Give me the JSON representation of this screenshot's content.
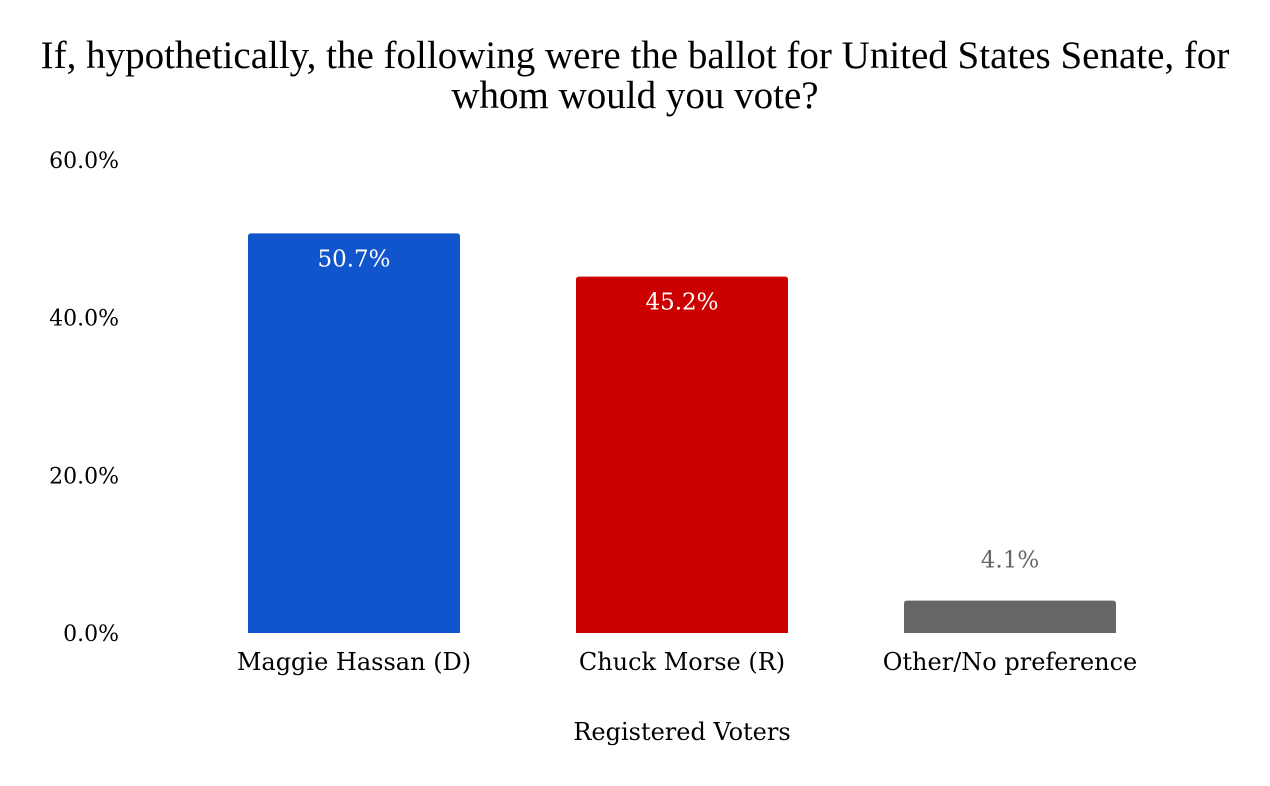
{
  "chart_data": {
    "type": "bar",
    "title": "If, hypothetically, the following were the ballot for United States Senate, for whom would you vote?",
    "xlabel": "Registered Voters",
    "ylabel": "",
    "ylim": [
      0,
      60
    ],
    "yticks": [
      "0.0%",
      "20.0%",
      "40.0%",
      "60.0%"
    ],
    "ytick_values": [
      0,
      20,
      40,
      60
    ],
    "grid": false,
    "legend": "none",
    "categories": [
      "Maggie Hassan (D)",
      "Chuck Morse (R)",
      "Other/No preference"
    ],
    "values": [
      50.7,
      45.2,
      4.1
    ],
    "data_labels": [
      "50.7%",
      "45.2%",
      "4.1%"
    ],
    "colors": [
      "#1155cc",
      "#cc0000",
      "#666666"
    ],
    "label_position": [
      "inside",
      "inside",
      "outside"
    ],
    "label_colors": [
      "#ffffff",
      "#ffffff",
      "#666666"
    ]
  }
}
